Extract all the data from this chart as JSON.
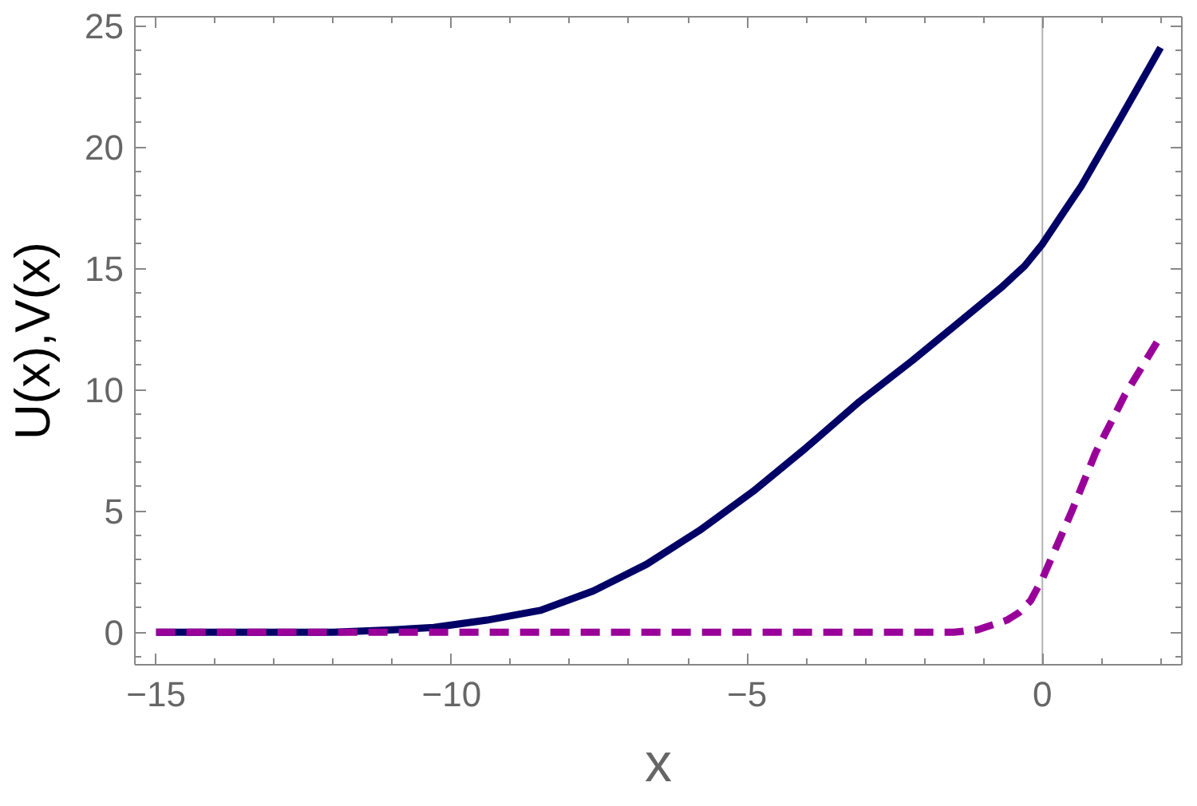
{
  "chart_data": {
    "type": "line",
    "xlabel": "x",
    "ylabel": "U(x),V(x)",
    "xlim": [
      -15.36,
      2.36
    ],
    "ylim": [
      -1.34,
      25.37
    ],
    "xticks": [
      {
        "value": -15,
        "label": "−15"
      },
      {
        "value": -14,
        "label": null
      },
      {
        "value": -13,
        "label": null
      },
      {
        "value": -12,
        "label": null
      },
      {
        "value": -11,
        "label": null
      },
      {
        "value": -10,
        "label": "−10"
      },
      {
        "value": -9,
        "label": null
      },
      {
        "value": -8,
        "label": null
      },
      {
        "value": -7,
        "label": null
      },
      {
        "value": -6,
        "label": null
      },
      {
        "value": -5,
        "label": "−5"
      },
      {
        "value": -4,
        "label": null
      },
      {
        "value": -3,
        "label": null
      },
      {
        "value": -2,
        "label": null
      },
      {
        "value": -1,
        "label": null
      },
      0,
      {
        "value": 1,
        "label": null
      },
      {
        "value": 2,
        "label": null
      }
    ],
    "yticks": [
      {
        "value": -1,
        "label": null
      },
      0,
      {
        "value": 1,
        "label": null
      },
      {
        "value": 2,
        "label": null
      },
      {
        "value": 3,
        "label": null
      },
      {
        "value": 4,
        "label": null
      },
      5,
      {
        "value": 6,
        "label": null
      },
      {
        "value": 7,
        "label": null
      },
      {
        "value": 8,
        "label": null
      },
      {
        "value": 9,
        "label": null
      },
      10,
      {
        "value": 11,
        "label": null
      },
      {
        "value": 12,
        "label": null
      },
      {
        "value": 13,
        "label": null
      },
      {
        "value": 14,
        "label": null
      },
      15,
      {
        "value": 16,
        "label": null
      },
      {
        "value": 17,
        "label": null
      },
      {
        "value": 18,
        "label": null
      },
      {
        "value": 19,
        "label": null
      },
      20,
      {
        "value": 21,
        "label": null
      },
      {
        "value": 22,
        "label": null
      },
      {
        "value": 23,
        "label": null
      },
      {
        "value": 24,
        "label": null
      },
      25
    ],
    "series": [
      {
        "color": "#000066",
        "line_style": "solid",
        "x": [
          -15,
          -13,
          -12,
          -11,
          -10.3,
          -9.4,
          -8.5,
          -7.6,
          -6.7,
          -5.8,
          -4.9,
          -4.0,
          -3.1,
          -2.2,
          -1.5,
          -0.7,
          -0.3,
          0,
          0.3,
          0.66,
          1.3,
          1.65,
          2.0
        ],
        "values": [
          0,
          0,
          0,
          0.1,
          0.2,
          0.5,
          0.9,
          1.7,
          2.8,
          4.2,
          5.8,
          7.6,
          9.5,
          11.2,
          12.6,
          14.2,
          15.1,
          16.0,
          17.1,
          18.4,
          21.1,
          22.6,
          24.1
        ]
      },
      {
        "color": "#990099",
        "line_style": "dashed",
        "x": [
          -15,
          -2.3,
          -1.5,
          -1.1,
          -0.6,
          -0.4,
          -0.2,
          0,
          0.5,
          0.9,
          1.4,
          2.0
        ],
        "values": [
          0,
          0,
          0,
          0.1,
          0.5,
          0.8,
          1.3,
          2.2,
          5.0,
          7.4,
          9.8,
          12.2
        ]
      }
    ],
    "ref_lines": [
      {
        "axis": "x",
        "value": 0,
        "color": "#b3b3b3"
      }
    ],
    "grid": false
  }
}
